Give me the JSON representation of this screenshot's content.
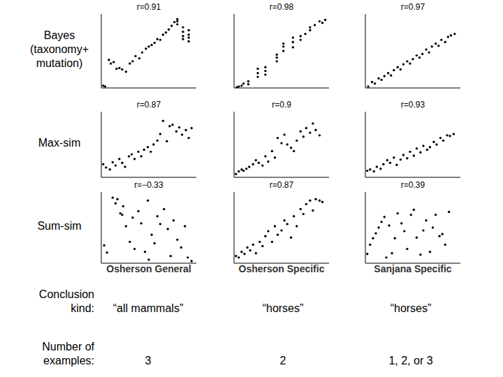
{
  "row_labels": [
    [
      "Bayes",
      "(taxonomy+",
      "mutation)"
    ],
    [
      "Max-sim"
    ],
    [
      "Sum-sim"
    ]
  ],
  "column_labels": [
    "Osherson General",
    "Osherson Specific",
    "Sanjana Specific"
  ],
  "table": {
    "rows": [
      {
        "label": [
          "Conclusion",
          "kind:"
        ],
        "cells": [
          "“all mammals”",
          "“horses”",
          "“horses”"
        ]
      },
      {
        "label": [
          "Number of",
          "examples:"
        ],
        "cells": [
          "3",
          "2",
          "1, 2, or 3"
        ]
      }
    ]
  },
  "chart_data": [
    {
      "type": "scatter",
      "title": "r=0.91",
      "color": "#000000",
      "marker": "circle",
      "tick_labels": false,
      "xlim": [
        0,
        10
      ],
      "ylim": [
        0,
        10
      ],
      "x": [
        0.2,
        0.4,
        0.8,
        1.0,
        1.3,
        1.6,
        1.9,
        2.2,
        2.6,
        3.0,
        3.3,
        3.6,
        4.0,
        4.3,
        4.7,
        5.0,
        5.3,
        5.6,
        5.9,
        6.2,
        6.5,
        6.8,
        7.1,
        7.4,
        7.7,
        8.0,
        8.0,
        8.0,
        8.6,
        8.6,
        8.6,
        8.6,
        9.2,
        9.2,
        9.2,
        9.2
      ],
      "y": [
        0.3,
        0.2,
        3.8,
        3.3,
        3.5,
        2.6,
        2.7,
        2.5,
        2.2,
        3.3,
        3.6,
        4.3,
        4.0,
        4.8,
        5.3,
        5.6,
        5.8,
        6.1,
        6.6,
        6.5,
        7.2,
        7.5,
        7.9,
        8.4,
        8.9,
        9.3,
        9.0,
        8.6,
        8.2,
        7.6,
        7.0,
        6.6,
        7.8,
        7.2,
        6.8,
        6.3
      ]
    },
    {
      "type": "scatter",
      "title": "r=0.98",
      "color": "#000000",
      "marker": "circle",
      "tick_labels": false,
      "xlim": [
        0,
        10
      ],
      "ylim": [
        0,
        10
      ],
      "x": [
        0.3,
        0.5,
        0.8,
        1.0,
        1.5,
        1.5,
        2.5,
        2.5,
        2.5,
        3.3,
        3.3,
        3.3,
        4.5,
        4.5,
        4.5,
        5.2,
        5.2,
        5.2,
        6.2,
        6.2,
        6.2,
        7.0,
        7.0,
        7.5,
        8.0,
        8.0,
        8.5,
        9.0,
        9.3,
        9.6
      ],
      "y": [
        0.1,
        0.2,
        0.3,
        0.6,
        0.9,
        0.5,
        1.5,
        2.0,
        2.6,
        1.8,
        2.3,
        2.8,
        3.6,
        4.1,
        4.5,
        5.0,
        5.6,
        6.0,
        5.5,
        6.2,
        6.8,
        6.5,
        7.0,
        7.3,
        7.8,
        8.2,
        8.5,
        9.0,
        8.8,
        9.2
      ]
    },
    {
      "type": "scatter",
      "title": "r=0.97",
      "color": "#000000",
      "marker": "circle",
      "tick_labels": false,
      "xlim": [
        0,
        10
      ],
      "ylim": [
        0,
        10
      ],
      "x": [
        0.3,
        0.7,
        1.0,
        1.4,
        1.7,
        2.0,
        2.4,
        2.7,
        3.0,
        3.4,
        3.7,
        4.0,
        4.4,
        4.7,
        5.0,
        5.4,
        5.7,
        6.0,
        6.4,
        6.7,
        7.0,
        7.4,
        7.7,
        8.0,
        8.4,
        8.7,
        9.0,
        9.4
      ],
      "y": [
        0.2,
        0.8,
        0.6,
        1.3,
        1.1,
        1.6,
        2.0,
        1.7,
        2.4,
        2.8,
        2.5,
        3.2,
        3.6,
        3.3,
        3.9,
        4.4,
        4.1,
        4.6,
        5.2,
        4.8,
        5.6,
        6.0,
        5.7,
        6.5,
        6.2,
        6.9,
        7.1,
        7.3
      ]
    },
    {
      "type": "scatter",
      "title": "r=0.87",
      "color": "#000000",
      "marker": "circle",
      "tick_labels": false,
      "xlim": [
        0,
        10
      ],
      "ylim": [
        0,
        10
      ],
      "x": [
        0.2,
        0.5,
        0.9,
        1.2,
        1.5,
        1.9,
        2.2,
        2.5,
        2.9,
        3.2,
        3.5,
        3.9,
        4.2,
        4.5,
        4.9,
        5.2,
        5.5,
        5.9,
        6.2,
        6.5,
        6.9,
        7.2,
        7.5,
        7.9,
        8.2,
        8.5,
        8.9,
        9.2,
        9.5
      ],
      "y": [
        2.0,
        1.5,
        1.2,
        2.3,
        1.8,
        2.8,
        2.2,
        1.6,
        3.2,
        3.5,
        2.8,
        3.9,
        3.2,
        4.2,
        4.6,
        3.9,
        5.0,
        5.6,
        6.6,
        8.6,
        5.5,
        7.8,
        8.0,
        7.0,
        7.6,
        6.5,
        7.2,
        6.0,
        7.5
      ]
    },
    {
      "type": "scatter",
      "title": "r=0.9",
      "color": "#000000",
      "marker": "circle",
      "tick_labels": false,
      "xlim": [
        0,
        10
      ],
      "ylim": [
        0,
        10
      ],
      "x": [
        0.2,
        0.5,
        0.8,
        1.0,
        1.3,
        1.6,
        2.0,
        2.3,
        2.6,
        3.0,
        3.3,
        3.6,
        4.0,
        4.3,
        4.6,
        5.0,
        5.3,
        5.6,
        6.0,
        6.3,
        6.6,
        7.0,
        7.3,
        7.6,
        8.0,
        8.3,
        8.6,
        9.0
      ],
      "y": [
        0.5,
        0.9,
        1.2,
        1.0,
        1.3,
        1.6,
        2.0,
        2.6,
        2.2,
        1.8,
        3.2,
        2.4,
        4.0,
        3.0,
        6.0,
        5.2,
        6.5,
        5.0,
        4.5,
        4.0,
        5.6,
        7.0,
        6.2,
        7.5,
        6.8,
        8.2,
        7.2,
        6.4
      ]
    },
    {
      "type": "scatter",
      "title": "r=0.93",
      "color": "#000000",
      "marker": "circle",
      "tick_labels": false,
      "xlim": [
        0,
        10
      ],
      "ylim": [
        0,
        10
      ],
      "x": [
        0.2,
        0.5,
        0.9,
        1.2,
        1.6,
        1.9,
        2.3,
        2.6,
        3.0,
        3.3,
        3.7,
        4.0,
        4.4,
        4.7,
        5.1,
        5.4,
        5.8,
        6.1,
        6.5,
        6.8,
        7.2,
        7.5,
        7.9,
        8.2,
        8.6,
        8.9,
        9.3
      ],
      "y": [
        1.0,
        1.2,
        0.9,
        1.6,
        1.3,
        2.0,
        2.6,
        2.2,
        3.0,
        1.9,
        2.7,
        3.4,
        2.9,
        3.9,
        3.3,
        4.4,
        3.8,
        4.8,
        4.2,
        4.6,
        5.4,
        5.0,
        6.0,
        5.6,
        6.4,
        6.3,
        6.6
      ]
    },
    {
      "type": "scatter",
      "title": "r=−0.33",
      "color": "#000000",
      "marker": "circle",
      "tick_labels": false,
      "xlim": [
        0,
        10
      ],
      "ylim": [
        0,
        10
      ],
      "x": [
        0.3,
        0.6,
        1.2,
        1.5,
        1.7,
        2.0,
        2.3,
        2.6,
        3.0,
        3.3,
        3.5,
        3.9,
        4.2,
        4.6,
        4.9,
        5.3,
        5.6,
        5.9,
        6.2,
        6.6,
        7.0,
        7.3,
        7.6,
        8.0,
        8.4,
        8.8,
        9.1,
        9.5,
        2.2,
        5.0
      ],
      "y": [
        2.5,
        1.5,
        9.2,
        8.4,
        9.0,
        7.0,
        8.0,
        5.2,
        3.0,
        6.4,
        2.0,
        7.3,
        5.6,
        1.6,
        8.8,
        4.0,
        2.8,
        6.6,
        5.5,
        7.6,
        4.8,
        1.0,
        6.0,
        3.3,
        2.2,
        5.2,
        0.8,
        0.3,
        6.8,
        0.5
      ]
    },
    {
      "type": "scatter",
      "title": "r=0.87",
      "color": "#000000",
      "marker": "circle",
      "tick_labels": false,
      "xlim": [
        0,
        10
      ],
      "ylim": [
        0,
        10
      ],
      "x": [
        0.2,
        0.5,
        0.8,
        1.1,
        1.4,
        1.7,
        2.0,
        2.3,
        2.7,
        3.0,
        3.3,
        3.6,
        4.0,
        4.3,
        4.6,
        5.0,
        5.3,
        5.6,
        6.0,
        6.3,
        6.6,
        7.0,
        7.3,
        7.6,
        8.0,
        8.3,
        8.6,
        9.0,
        9.3
      ],
      "y": [
        1.0,
        0.8,
        1.6,
        1.3,
        2.2,
        1.8,
        2.6,
        1.4,
        3.0,
        2.4,
        3.8,
        4.5,
        3.0,
        5.2,
        4.0,
        4.6,
        6.0,
        5.5,
        3.6,
        6.6,
        5.2,
        7.6,
        6.9,
        8.3,
        8.8,
        7.4,
        9.0,
        8.8,
        8.6
      ]
    },
    {
      "type": "scatter",
      "title": "r=0.39",
      "color": "#000000",
      "marker": "circle",
      "tick_labels": false,
      "xlim": [
        0,
        10
      ],
      "ylim": [
        0,
        10
      ],
      "x": [
        0.2,
        0.5,
        0.8,
        1.1,
        1.4,
        1.7,
        2.0,
        2.2,
        2.5,
        2.8,
        3.1,
        3.4,
        3.8,
        4.1,
        4.4,
        4.8,
        5.1,
        5.4,
        5.8,
        6.1,
        6.4,
        6.8,
        7.1,
        7.4,
        7.8,
        8.1,
        8.4,
        8.8
      ],
      "y": [
        1.3,
        2.6,
        3.5,
        4.2,
        5.0,
        5.8,
        6.5,
        0.8,
        5.3,
        1.4,
        3.5,
        7.0,
        5.6,
        4.5,
        2.0,
        6.8,
        7.5,
        3.6,
        1.2,
        4.6,
        6.0,
        1.6,
        5.0,
        6.8,
        3.8,
        4.1,
        2.6,
        7.2
      ]
    }
  ]
}
